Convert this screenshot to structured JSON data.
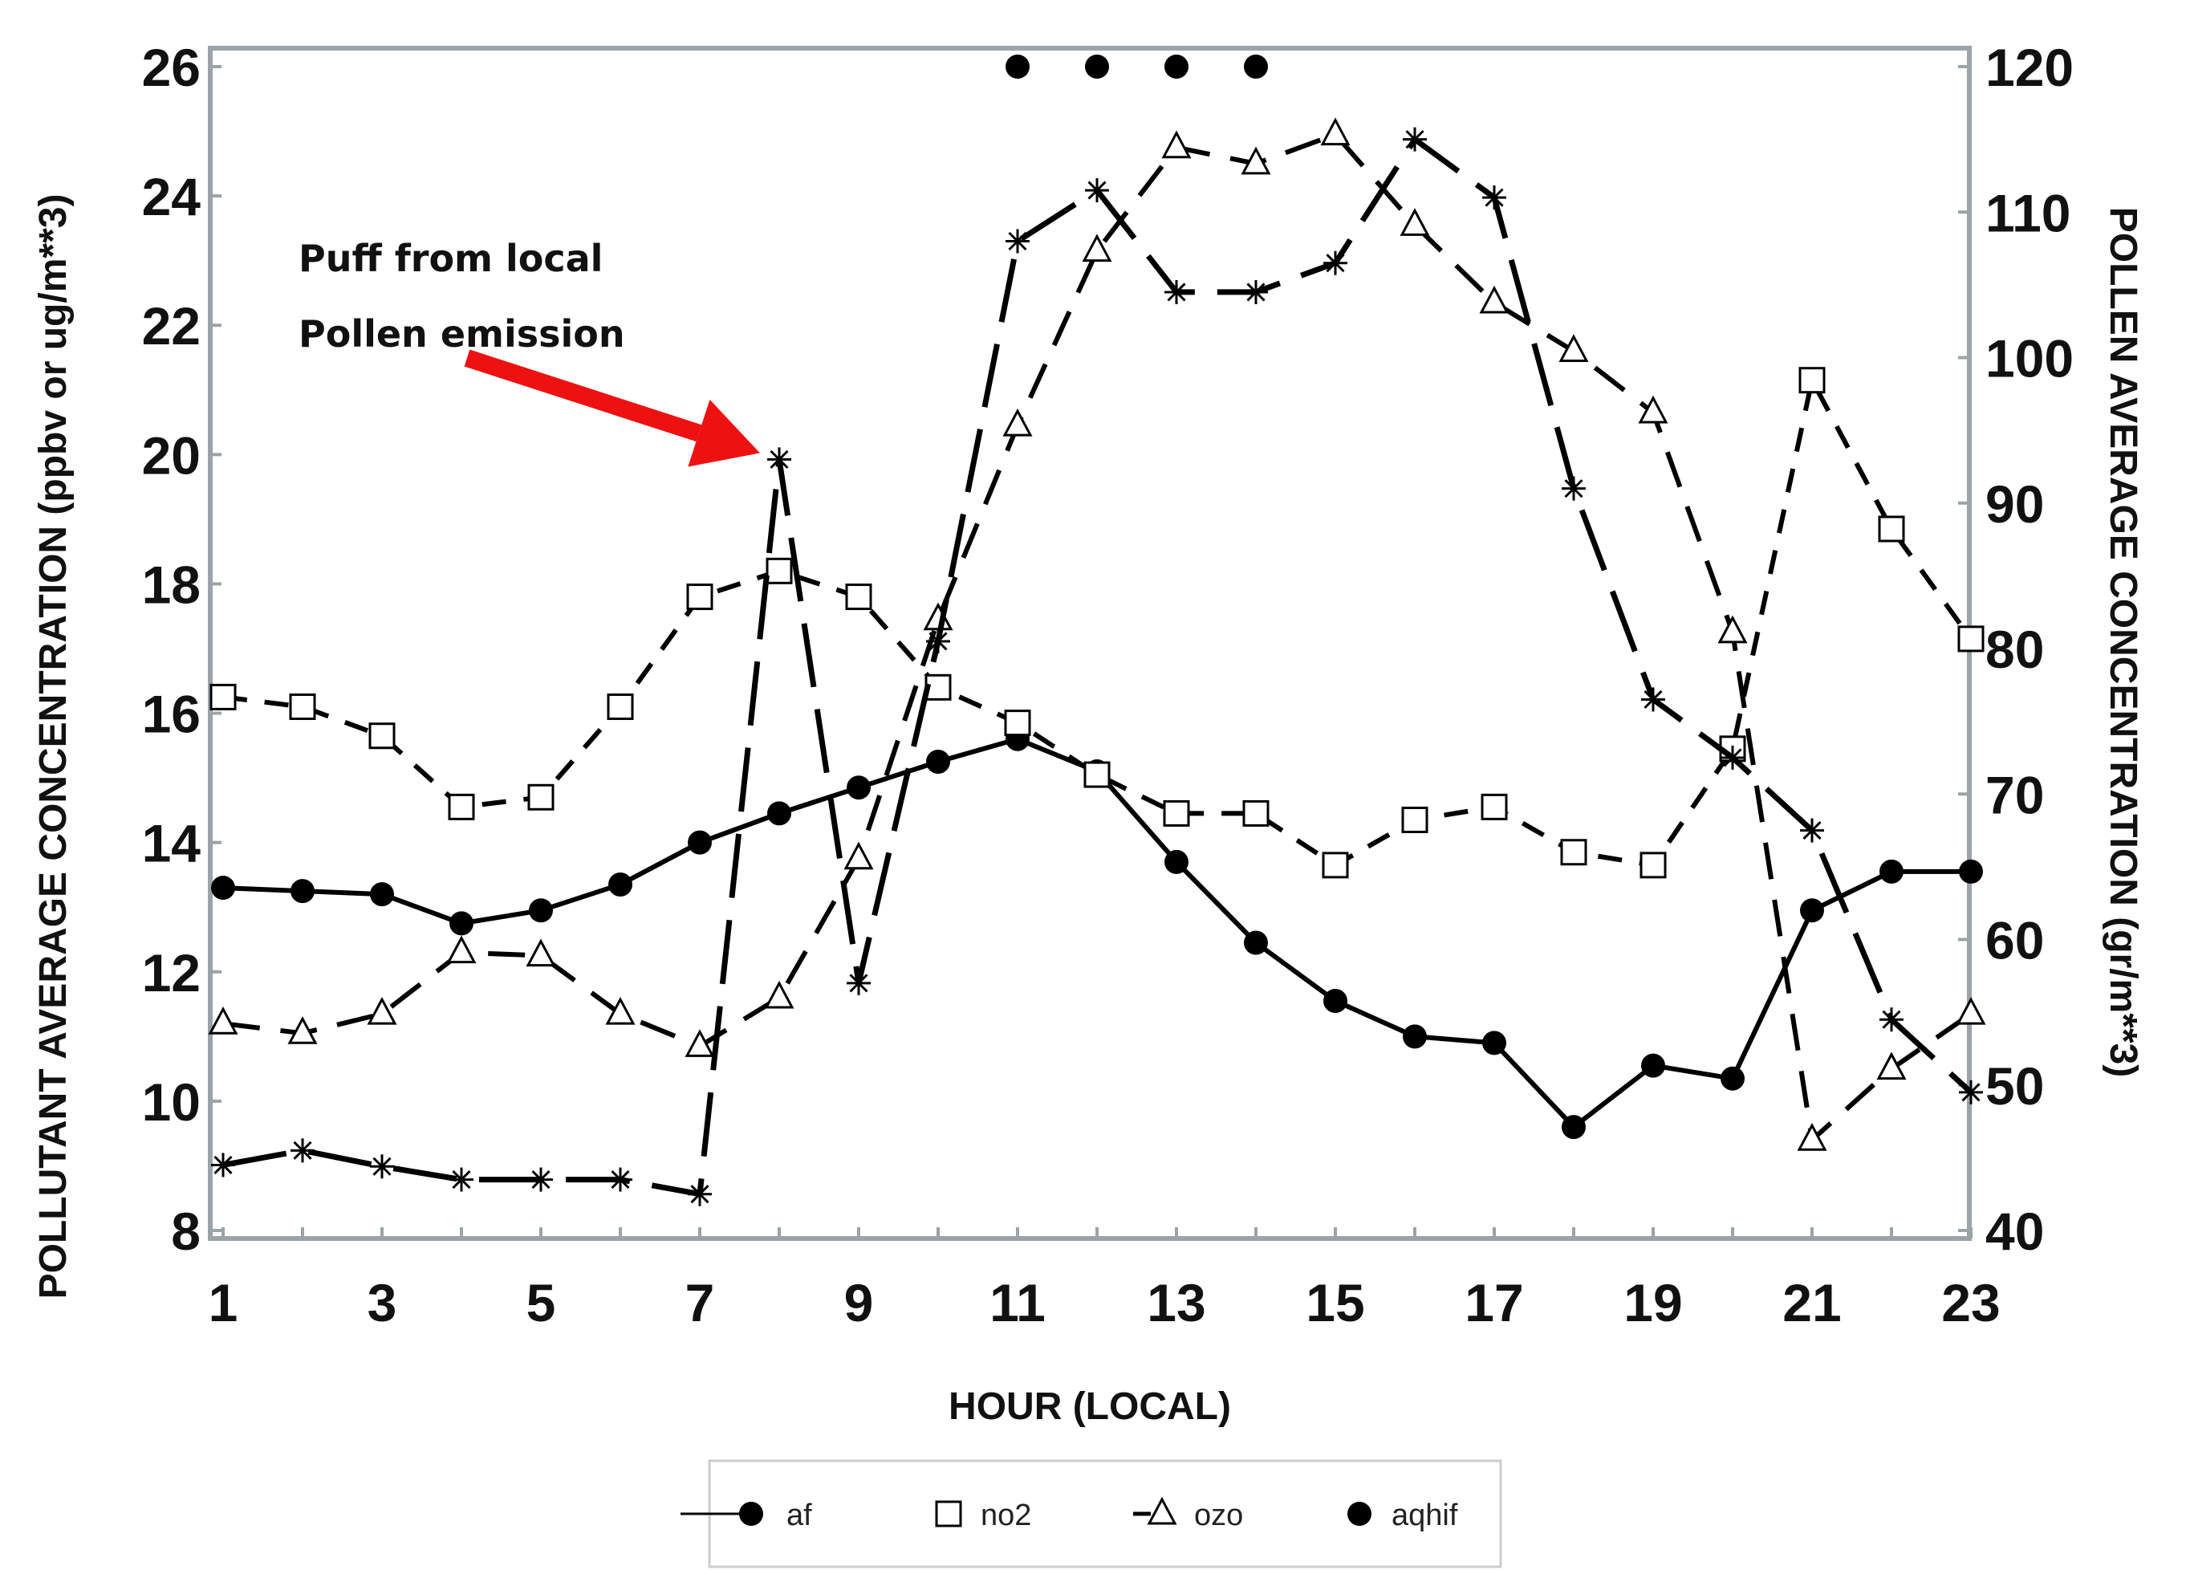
{
  "chart_data": {
    "type": "line",
    "xlabel": "HOUR (LOCAL)",
    "ylabel_left": "POLLUTANT AVERAGE CONCENTRATION (ppbv or ug/m**3)",
    "ylabel_right": "POLLEN AVERAGE CONCENTRATION (gr/m**3)",
    "x_ticks": [
      "1",
      "3",
      "5",
      "7",
      "9",
      "11",
      "13",
      "15",
      "17",
      "19",
      "21",
      "23"
    ],
    "xlim": [
      0.8,
      23
    ],
    "ylim_left": [
      7.9,
      26
    ],
    "ylim_right": [
      40,
      120
    ],
    "y_ticks_left": [
      "8",
      "10",
      "12",
      "14",
      "16",
      "18",
      "20",
      "22",
      "24",
      "26"
    ],
    "y_ticks_right": [
      "40",
      "50",
      "60",
      "70",
      "80",
      "90",
      "100",
      "110",
      "120"
    ],
    "grid": false,
    "legend_position": "bottom",
    "x": [
      1,
      2,
      3,
      4,
      5,
      6,
      7,
      8,
      9,
      10,
      11,
      12,
      13,
      14,
      15,
      16,
      17,
      18,
      19,
      20,
      21,
      22,
      23
    ],
    "series": [
      {
        "name": "af",
        "axis": "left",
        "marker": "filled-circle",
        "line": "solid",
        "values": [
          13.3,
          13.25,
          13.2,
          12.75,
          12.95,
          13.35,
          14.0,
          14.45,
          14.85,
          15.25,
          15.6,
          15.1,
          13.7,
          12.45,
          11.55,
          11.0,
          10.9,
          9.6,
          10.55,
          10.35,
          12.95,
          13.55,
          13.55
        ]
      },
      {
        "name": "no2",
        "axis": "left",
        "marker": "open-square",
        "line": "short-dash",
        "values": [
          16.25,
          16.1,
          15.65,
          14.55,
          14.7,
          16.1,
          17.8,
          18.2,
          17.8,
          16.4,
          15.85,
          15.05,
          14.45,
          14.45,
          13.65,
          14.35,
          14.55,
          13.85,
          13.65,
          15.45,
          21.15,
          18.85,
          17.15
        ]
      },
      {
        "name": "ozo",
        "axis": "left",
        "marker": "open-triangle",
        "line": "medium-dash",
        "values": [
          11.2,
          11.05,
          11.35,
          12.3,
          12.25,
          11.35,
          10.85,
          11.6,
          13.75,
          17.45,
          20.45,
          23.15,
          24.75,
          24.5,
          24.95,
          23.55,
          22.35,
          21.6,
          20.65,
          17.25,
          9.4,
          10.5,
          11.35
        ]
      },
      {
        "name": "pollen",
        "axis": "right",
        "marker": "asterisk",
        "line": "long-dash",
        "values": [
          44.5,
          45.5,
          44.4,
          43.5,
          43.5,
          43.5,
          42.5,
          93.0,
          57.0,
          80.5,
          108.0,
          111.5,
          104.5,
          104.5,
          106.5,
          115.0,
          111.0,
          91.0,
          76.5,
          72.5,
          67.5,
          54.5,
          49.5
        ]
      },
      {
        "name": "aqhif",
        "axis": "left",
        "marker": "filled-circle",
        "line": "none",
        "x": [
          11,
          12,
          13,
          14
        ],
        "values": [
          26,
          26,
          26,
          26
        ]
      }
    ],
    "annotations": [
      {
        "text_lines": [
          "Puff from local",
          "Pollen emission"
        ],
        "arrow_to": {
          "x": 8,
          "y": 93.0,
          "axis": "right"
        },
        "color": "#ee1111"
      }
    ],
    "legend": [
      {
        "label": "af",
        "symbol": "line-filled-circle"
      },
      {
        "label": "no2",
        "symbol": "open-square"
      },
      {
        "label": "ozo",
        "symbol": "open-triangle"
      },
      {
        "label": "aqhif",
        "symbol": "filled-circle"
      }
    ]
  }
}
